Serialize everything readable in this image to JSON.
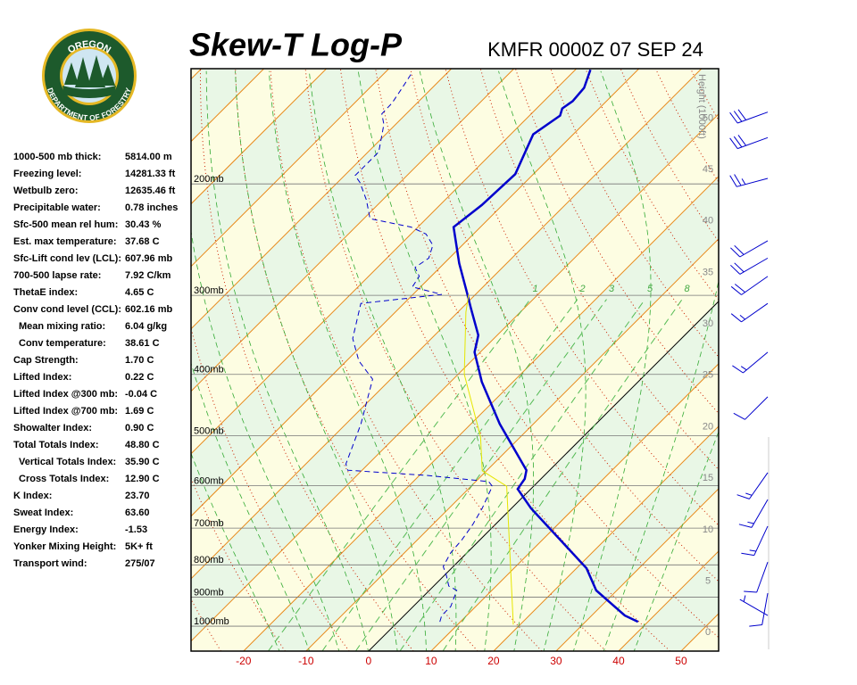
{
  "logo": {
    "top": "OREGON",
    "bottom": "DEPARTMENT OF FORESTRY"
  },
  "indices": [
    {
      "label": "1000-500 mb thick:",
      "value": "5814.00 m"
    },
    {
      "label": "Freezing level:",
      "value": "14281.33 ft"
    },
    {
      "label": "Wetbulb zero:",
      "value": "12635.46 ft"
    },
    {
      "label": "Precipitable water:",
      "value": "0.78 inches"
    },
    {
      "label": "Sfc-500 mean rel hum:",
      "value": "30.43 %"
    },
    {
      "label": "Est. max temperature:",
      "value": "37.68 C"
    },
    {
      "label": "Sfc-Lift cond lev (LCL):",
      "value": "607.96 mb"
    },
    {
      "label": "700-500 lapse rate:",
      "value": "7.92 C/km"
    },
    {
      "label": "ThetaE index:",
      "value": "4.65 C"
    },
    {
      "label": "Conv cond level (CCL):",
      "value": "602.16 mb"
    },
    {
      "label": "Mean mixing ratio:",
      "value": "6.04 g/kg",
      "indent": true
    },
    {
      "label": "Conv temperature:",
      "value": "38.61 C",
      "indent": true
    },
    {
      "label": "Cap Strength:",
      "value": "1.70 C"
    },
    {
      "label": "Lifted Index:",
      "value": "0.22 C"
    },
    {
      "label": "Lifted Index @300 mb:",
      "value": "-0.04 C"
    },
    {
      "label": "Lifted Index @700 mb:",
      "value": "1.69 C"
    },
    {
      "label": "Showalter Index:",
      "value": "0.90 C"
    },
    {
      "label": "Total Totals Index:",
      "value": "48.80 C"
    },
    {
      "label": "Vertical Totals Index:",
      "value": "35.90 C",
      "indent": true
    },
    {
      "label": "Cross Totals Index:",
      "value": "12.90 C",
      "indent": true
    },
    {
      "label": "K Index:",
      "value": "23.70"
    },
    {
      "label": "Sweat Index:",
      "value": "63.60"
    },
    {
      "label": "Energy Index:",
      "value": "-1.53"
    },
    {
      "label": "Yonker Mixing Height:",
      "value": "5K+ ft"
    },
    {
      "label": "Transport wind:",
      "value": "275/07"
    }
  ],
  "chart_data": {
    "type": "skewt",
    "title": "Skew-T Log-P",
    "subtitle": "KMFR 0000Z 07 SEP 24",
    "xlim": [
      -28.4,
      56
    ],
    "xticks": [
      -20,
      -10,
      0,
      10,
      20,
      30,
      40,
      50
    ],
    "ylim": [
      1095,
      131.5
    ],
    "log_y": true,
    "skew_deg": 45,
    "yticks": [
      {
        "value": 200,
        "label": "200mb"
      },
      {
        "value": 300,
        "label": "300mb"
      },
      {
        "value": 400,
        "label": "400mb"
      },
      {
        "value": 500,
        "label": "500mb"
      },
      {
        "value": 600,
        "label": "600mb"
      },
      {
        "value": 700,
        "label": "700mb"
      },
      {
        "value": 800,
        "label": "800mb"
      },
      {
        "value": 900,
        "label": "900mb"
      },
      {
        "value": 1000,
        "label": "1000mb"
      }
    ],
    "height_label": "Height (1000ft)",
    "hlim": [
      -1.8,
      54.8
    ],
    "hticks": [
      0,
      5,
      10,
      15,
      20,
      25,
      30,
      35,
      40,
      45,
      50
    ],
    "mixing_ratios": [
      1,
      2,
      3,
      5,
      8
    ],
    "series": [
      {
        "color": "#0000cc",
        "dashed": false,
        "pressure": [
          984,
          962,
          878,
          810,
          737,
          651,
          607,
          585,
          567,
          479,
          411,
          369,
          347,
          314,
          299,
          267,
          234,
          216,
          193,
          167,
          156,
          152,
          148,
          141,
          132
        ],
        "values": [
          38.4,
          35.3,
          26.7,
          21.6,
          13.6,
          3.1,
          -2.1,
          -2.6,
          -3.7,
          -15.4,
          -25.0,
          -30.9,
          -33.0,
          -38.6,
          -41.3,
          -47.6,
          -54.3,
          -53.3,
          -52.9,
          -56.4,
          -55.1,
          -55.9,
          -55.4,
          -55.7,
          -57.6
        ]
      },
      {
        "color": "#0000cc",
        "dashed": true,
        "pressure": [
          984,
          962,
          931,
          878,
          864,
          831,
          805,
          766,
          730,
          691,
          651,
          601,
          591,
          578,
          567,
          554,
          479,
          407,
          381,
          351,
          309,
          299,
          291,
          280,
          271,
          262,
          250,
          240,
          234,
          227,
          212,
          199,
          194,
          178,
          161,
          155,
          149,
          142,
          134
        ],
        "values": [
          6.7,
          6.0,
          6.0,
          4.4,
          2.4,
          0.3,
          -1.6,
          -2.6,
          -2.9,
          -3.6,
          -4.7,
          -6.6,
          -7.9,
          -18.6,
          -32.3,
          -33.6,
          -37.6,
          -42.9,
          -48.0,
          -52.6,
          -56.9,
          -45.4,
          -51.3,
          -51.9,
          -54.0,
          -53.3,
          -54.7,
          -57.6,
          -61.1,
          -69.0,
          -72.6,
          -76.4,
          -78.3,
          -78.3,
          -81.9,
          -83.9,
          -84.0,
          -84.7,
          -85.6
        ]
      },
      {
        "color": "#e6e600",
        "dashed": false,
        "pressure": [
          994,
          718,
          601,
          568,
          502,
          400,
          319,
          299
        ],
        "values": [
          18.9,
          3.9,
          -4.3,
          -10.7,
          -16.4,
          -29.0,
          -38.7,
          -41.1
        ]
      }
    ],
    "winds": {
      "color": "#0000cc",
      "pressure": [
        154,
        169,
        196,
        246,
        262,
        280,
        309,
        369,
        434,
        572,
        631,
        695,
        792,
        887,
        962
      ],
      "direction": [
        250,
        250,
        255,
        240,
        240,
        235,
        235,
        230,
        225,
        215,
        210,
        205,
        200,
        190,
        300
      ],
      "speed": [
        30,
        30,
        25,
        20,
        20,
        20,
        15,
        15,
        10,
        15,
        15,
        15,
        10,
        10,
        5
      ]
    }
  }
}
